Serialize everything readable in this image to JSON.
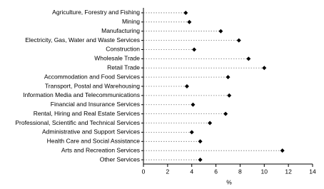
{
  "chart_data": {
    "type": "dot",
    "categories": [
      "Agriculture, Forestry and Fishing",
      "Mining",
      "Manufacturing",
      "Electricity, Gas, Water and Waste Services",
      "Construction",
      "Wholesale Trade",
      "Retail Trade",
      "Accommodation and Food Services",
      "Transport, Postal and Warehousing",
      "Information Media and Telecommunications",
      "Financial and Insurance Services",
      "Rental, Hiring and Real Estate Services",
      "Professional, Scientific and Technical Services",
      "Administrative and Support Services",
      "Health Care and Social Assistance",
      "Arts and Recreation Services",
      "Other Services"
    ],
    "values": [
      3.5,
      3.8,
      6.4,
      7.9,
      4.2,
      8.7,
      10.0,
      7.0,
      3.6,
      7.1,
      4.1,
      6.8,
      5.5,
      4.0,
      4.7,
      11.5,
      4.7
    ],
    "color": "#000000",
    "x_label": "%",
    "xlim": [
      0,
      14
    ],
    "xticks": [
      0,
      2,
      4,
      6,
      8,
      10,
      12,
      14
    ]
  }
}
